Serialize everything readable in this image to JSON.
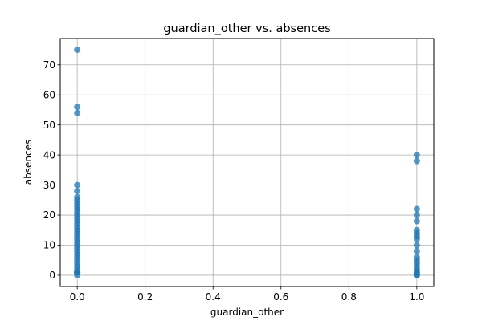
{
  "chart_data": {
    "type": "scatter",
    "title": "guardian_other vs. absences",
    "xlabel": "guardian_other",
    "ylabel": "absences",
    "xlim": [
      -0.05,
      1.05
    ],
    "ylim": [
      -3.75,
      78.75
    ],
    "xticks": [
      0.0,
      0.2,
      0.4,
      0.6,
      0.8,
      1.0
    ],
    "xtick_labels": [
      "0.0",
      "0.2",
      "0.4",
      "0.6",
      "0.8",
      "1.0"
    ],
    "yticks": [
      0,
      10,
      20,
      30,
      40,
      50,
      60,
      70
    ],
    "ytick_labels": [
      "0",
      "10",
      "20",
      "30",
      "40",
      "50",
      "60",
      "70"
    ],
    "grid": true,
    "legend": "none",
    "point_color": "#1f77b4",
    "series": [
      {
        "x": [
          0,
          0,
          0,
          0,
          0,
          0,
          0,
          0,
          0,
          0,
          0,
          0,
          0,
          0,
          0,
          0,
          0,
          0,
          0,
          0,
          0,
          0,
          0,
          0,
          0,
          0,
          0,
          0,
          0,
          0,
          0,
          0,
          0,
          0,
          0,
          0,
          1,
          1,
          1,
          1,
          1,
          1,
          1,
          1,
          1,
          1,
          1,
          1,
          1,
          1,
          1,
          1,
          1,
          1,
          1,
          1
        ],
        "y": [
          0,
          1,
          2,
          3,
          4,
          5,
          6,
          7,
          8,
          9,
          10,
          11,
          12,
          13,
          14,
          15,
          16,
          17,
          18,
          19,
          20,
          21,
          22,
          23,
          24,
          25,
          26,
          28,
          30,
          54,
          56,
          75,
          1,
          1,
          1,
          1,
          0,
          1,
          2,
          3,
          4,
          5,
          6,
          8,
          10,
          12,
          13,
          14,
          15,
          18,
          20,
          22,
          38,
          40,
          0,
          1
        ],
        "note": ""
      }
    ]
  }
}
